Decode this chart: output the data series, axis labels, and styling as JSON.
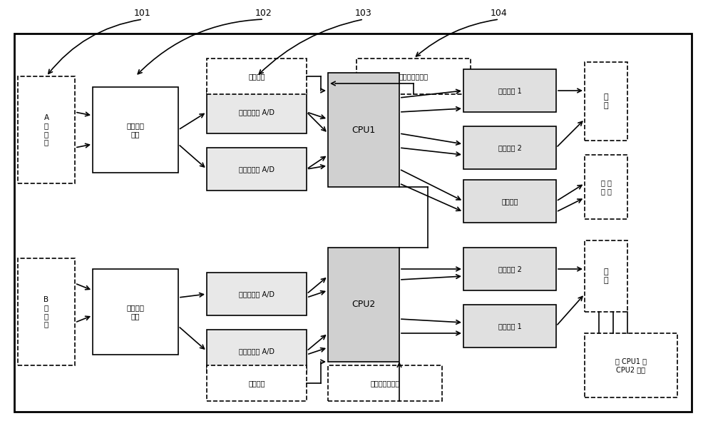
{
  "title": "",
  "bg_color": "#ffffff",
  "border_color": "#000000",
  "fig_width": 10.0,
  "fig_height": 5.97,
  "labels": {
    "A_host": "A\n主\n机\n入",
    "B_host": "B\n并\n机\n入",
    "input_iso_A": "输入隔离\n电路",
    "input_iso_B": "输入隔离\n电路",
    "main_track_A": "主轨道电路 A/D",
    "small_track_A": "小轨道电路 A/D",
    "main_track_B": "主轨道电路 A/D",
    "small_track_B": "小轨道电路 A/D",
    "cpu1": "CPU1",
    "cpu2": "CPU2",
    "safe_gate_A1": "安全与门 1",
    "safe_gate_A2": "安全与门 2",
    "fault_check": "故障检查",
    "safe_gate_B2": "安全与门 2",
    "safe_gate_B1": "安全与门 1",
    "output_A": "输\n出",
    "output_B": "输\n出",
    "alarm": "报 警\n条 件",
    "carrier_select_top": "载频选择",
    "carrier_select_bottom": "载频选择",
    "small_track_cond_top": "小轨道检查条件",
    "small_track_cond_bottom": "小轨道检查条件",
    "cpu_check": "至 CPU1 及\nCPU2 检查",
    "ref_101": "101",
    "ref_102": "102",
    "ref_103": "103",
    "ref_104": "104"
  }
}
